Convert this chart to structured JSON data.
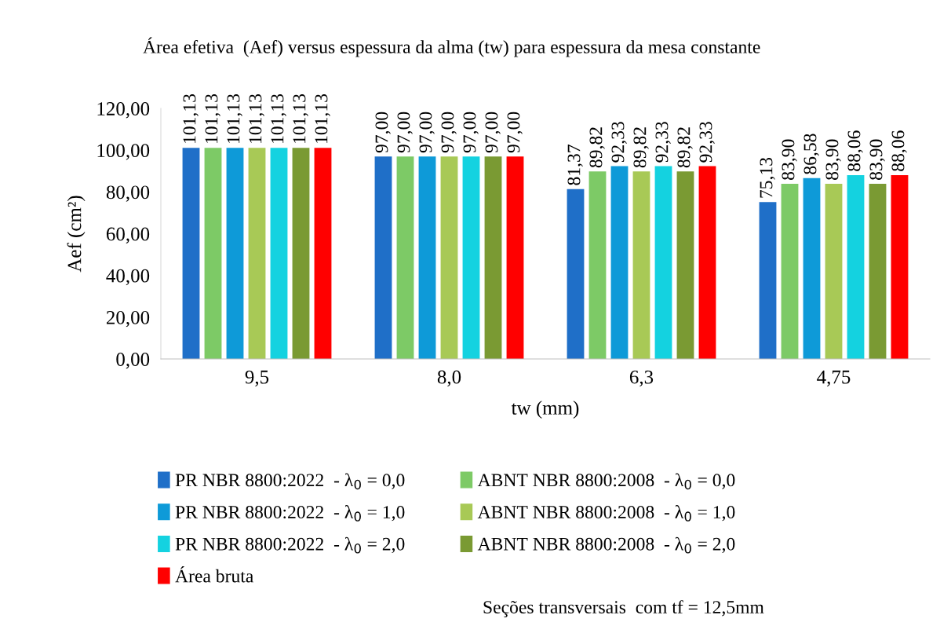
{
  "chart_data": {
    "type": "bar",
    "title": "Área efetiva  (Aef) versus espessura da alma (tw) para espessura da mesa constante",
    "xlabel": "tw (mm)",
    "ylabel": "Aef (cm²)",
    "categories": [
      "9,5",
      "8,0",
      "6,3",
      "4,75"
    ],
    "series": [
      {
        "name": "PR NBR 8800:2022  - λ$_{0}$ = 0,0",
        "color": "#1f6fc8",
        "values": [
          101.13,
          97.0,
          81.37,
          75.13
        ],
        "value_labels": [
          "101,13",
          "97,00",
          "81,37",
          "75,13"
        ]
      },
      {
        "name": "ABNT NBR 8800:2008  - λ$_{0}$ = 0,0",
        "color": "#7dca66",
        "values": [
          101.13,
          97.0,
          89.82,
          83.9
        ],
        "value_labels": [
          "101,13",
          "97,00",
          "89,82",
          "83,90"
        ]
      },
      {
        "name": "PR NBR 8800:2022  - λ$_{0}$ = 1,0",
        "color": "#0e9ad8",
        "values": [
          101.13,
          97.0,
          92.33,
          86.58
        ],
        "value_labels": [
          "101,13",
          "97,00",
          "92,33",
          "86,58"
        ]
      },
      {
        "name": "ABNT NBR 8800:2008  - λ$_{0}$ = 1,0",
        "color": "#a8c956",
        "values": [
          101.13,
          97.0,
          89.82,
          83.9
        ],
        "value_labels": [
          "101,13",
          "97,00",
          "89,82",
          "83,90"
        ]
      },
      {
        "name": "PR NBR 8800:2022  - λ$_{0}$ = 2,0",
        "color": "#14d2e0",
        "values": [
          101.13,
          97.0,
          92.33,
          88.06
        ],
        "value_labels": [
          "101,13",
          "97,00",
          "92,33",
          "88,06"
        ]
      },
      {
        "name": "ABNT NBR 8800:2008  - λ$_{0}$ = 2,0",
        "color": "#7a9a33",
        "values": [
          101.13,
          97.0,
          89.82,
          83.9
        ],
        "value_labels": [
          "101,13",
          "97,00",
          "89,82",
          "83,90"
        ]
      },
      {
        "name": "Área bruta",
        "color": "#ff0000",
        "values": [
          101.13,
          97.0,
          92.33,
          88.06
        ],
        "value_labels": [
          "101,13",
          "97,00",
          "92,33",
          "88,06"
        ]
      }
    ],
    "ylim": [
      0,
      120
    ],
    "yticks": [
      {
        "value": 0,
        "label": "0,00"
      },
      {
        "value": 20,
        "label": "20,00"
      },
      {
        "value": 40,
        "label": "40,00"
      },
      {
        "value": 60,
        "label": "60,00"
      },
      {
        "value": 80,
        "label": "80,00"
      },
      {
        "value": 100,
        "label": "100,00"
      },
      {
        "value": 120,
        "label": "120,00"
      }
    ],
    "grid": false,
    "legend": "bottom",
    "annotations": [
      "Seções transversais  com tf = 12,5mm"
    ]
  }
}
